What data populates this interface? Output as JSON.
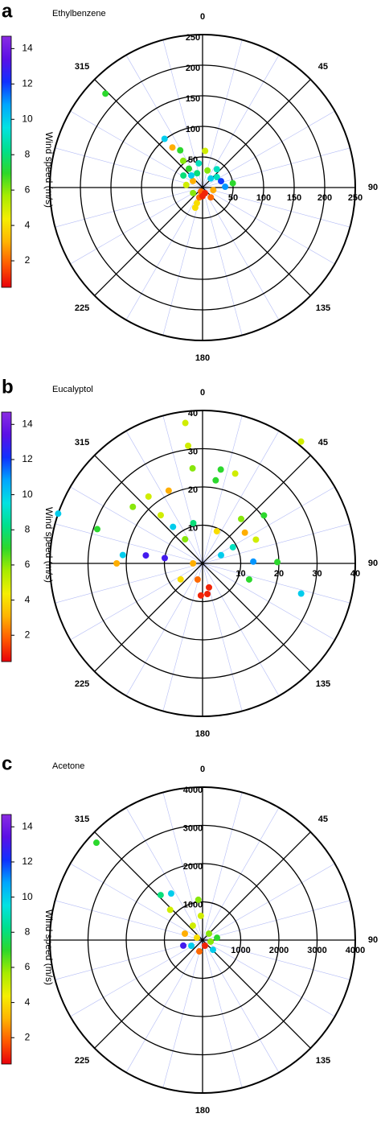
{
  "chart_data": [
    {
      "type": "polar-scatter",
      "panel": "a",
      "title": "Ethylbenzene",
      "colorbar_label": "Wind speed (m/s)",
      "clim": [
        0.5,
        14.7
      ],
      "colorbar_ticks": [
        2,
        4,
        6,
        8,
        10,
        12,
        14
      ],
      "colormap": [
        "#e8000b",
        "#ff5a00",
        "#ffb400",
        "#f5ee00",
        "#a8ec00",
        "#2ed82a",
        "#00e08c",
        "#00e2e2",
        "#00a6ff",
        "#1030ff",
        "#5a10e6",
        "#8a2be2"
      ],
      "rlim": [
        0,
        250
      ],
      "rticks": [
        50,
        100,
        150,
        200,
        250
      ],
      "thetaticks": [
        0,
        45,
        90,
        135,
        180,
        225,
        315
      ],
      "theta": [
        314,
        322,
        323,
        329,
        4,
        324,
        324,
        339,
        42,
        54,
        82,
        88,
        304,
        202,
        157,
        200,
        279,
        103,
        16,
        317,
        351,
        38,
        302,
        198,
        180,
        140,
        240,
        200,
        71
      ],
      "r": [
        221,
        101,
        82,
        71,
        60,
        54,
        38,
        25,
        20,
        29,
        50,
        37,
        19,
        7,
        10,
        27,
        27,
        18,
        29,
        27,
        40,
        38,
        37,
        17,
        14,
        21,
        18,
        35,
        32
      ],
      "wind_speed": [
        7,
        10,
        3,
        7,
        5,
        6,
        7,
        8,
        10,
        9,
        7,
        11,
        3,
        2,
        1,
        4,
        5,
        3,
        6,
        10,
        9,
        9,
        8,
        2,
        1,
        2,
        6,
        4,
        12
      ]
    },
    {
      "type": "polar-scatter",
      "panel": "b",
      "title": "Eucalyptol",
      "colorbar_label": "Wind speed (m/s)",
      "clim": [
        0.5,
        14.7
      ],
      "colorbar_ticks": [
        2,
        4,
        6,
        8,
        10,
        12,
        14
      ],
      "colormap": [
        "#e8000b",
        "#ff5a00",
        "#ffb400",
        "#f5ee00",
        "#a8ec00",
        "#2ed82a",
        "#00e08c",
        "#00e2e2",
        "#00a6ff",
        "#1030ff",
        "#5a10e6",
        "#8a2be2"
      ],
      "rlim": [
        0,
        40
      ],
      "rticks": [
        10,
        20,
        30,
        40
      ],
      "thetaticks": [
        0,
        45,
        90,
        135,
        180,
        225,
        315
      ],
      "theta": [
        39,
        353,
        353,
        289,
        288,
        107,
        321,
        309,
        354,
        11,
        20,
        9,
        335,
        319,
        321,
        278,
        278,
        276,
        270,
        270,
        197,
        165,
        183,
        171,
        41,
        52,
        66,
        54,
        24,
        347,
        324,
        66,
        109,
        62,
        234,
        88,
        89
      ],
      "r": [
        41,
        37,
        31,
        40,
        29,
        27,
        22.5,
        23.5,
        25,
        25,
        25,
        22,
        21,
        16.7,
        12.3,
        15,
        10,
        21,
        22.5,
        2.5,
        4.4,
        6.5,
        8.4,
        8.1,
        15.4,
        20.4,
        15.3,
        13.7,
        9.2,
        10.8,
        7.8,
        5.3,
        12.9,
        9,
        7.1,
        13.3,
        19.6
      ],
      "wind_speed": [
        5,
        5,
        5,
        10,
        7,
        10,
        5,
        6,
        6,
        7,
        5,
        7,
        3,
        5,
        10,
        13,
        13,
        10,
        3,
        3,
        2,
        1,
        1,
        1,
        6,
        7,
        5,
        3,
        4,
        8,
        6,
        10,
        7,
        9,
        4,
        11,
        7
      ]
    },
    {
      "type": "polar-scatter",
      "panel": "c",
      "title": "Acetone",
      "colorbar_label": "Wind speed (m/s)",
      "clim": [
        0.5,
        14.7
      ],
      "colorbar_ticks": [
        2,
        4,
        6,
        8,
        10,
        12,
        14
      ],
      "colormap": [
        "#e8000b",
        "#ff5a00",
        "#ffb400",
        "#f5ee00",
        "#a8ec00",
        "#2ed82a",
        "#00e08c",
        "#00e2e2",
        "#00a6ff",
        "#1030ff",
        "#5a10e6",
        "#8a2be2"
      ],
      "rlim": [
        0,
        4000
      ],
      "rticks": [
        1000,
        2000,
        3000,
        4000
      ],
      "thetaticks": [
        0,
        45,
        90,
        135,
        180,
        225,
        315
      ],
      "theta": [
        312.5,
        326,
        317,
        313,
        354,
        356,
        290,
        293,
        45,
        254,
        243,
        157,
        101,
        196,
        133,
        326,
        81
      ],
      "r": [
        3770,
        1470,
        1610,
        1160,
        1060,
        635,
        493,
        160,
        238,
        525,
        330,
        160,
        215,
        307,
        373,
        455,
        384
      ],
      "wind_speed": [
        7,
        10,
        8,
        5,
        6,
        5,
        3,
        4,
        6,
        13,
        10,
        1,
        6,
        2,
        10,
        5,
        7
      ]
    }
  ]
}
